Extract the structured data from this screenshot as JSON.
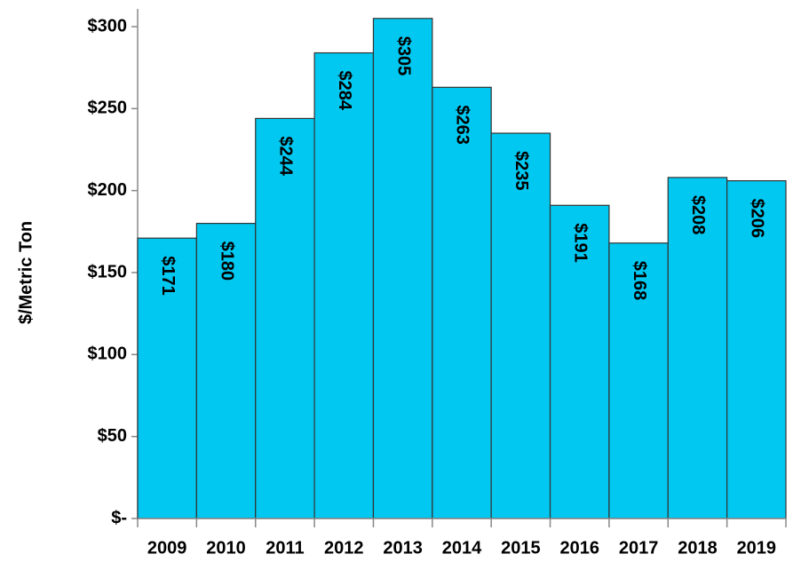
{
  "chart_data": {
    "type": "bar",
    "y_label": "$/Metric Ton",
    "categories": [
      "2009",
      "2010",
      "2011",
      "2012",
      "2013",
      "2014",
      "2015",
      "2016",
      "2017",
      "2018",
      "2019"
    ],
    "values": [
      171,
      180,
      244,
      284,
      305,
      263,
      235,
      191,
      168,
      208,
      206
    ],
    "value_labels": [
      "$171",
      "$180",
      "$244",
      "$284",
      "$305",
      "$263",
      "$235",
      "$191",
      "$168",
      "$208",
      "$206"
    ],
    "color": "#00c8f0",
    "ylim": [
      0,
      300
    ],
    "yticks": [
      {
        "value": 0,
        "label": "$-"
      },
      {
        "value": 50,
        "label": "$50"
      },
      {
        "value": 100,
        "label": "$100"
      },
      {
        "value": 150,
        "label": "$150"
      },
      {
        "value": 200,
        "label": "$200"
      },
      {
        "value": 250,
        "label": "$250"
      },
      {
        "value": 300,
        "label": "$300"
      }
    ],
    "grid": false
  }
}
